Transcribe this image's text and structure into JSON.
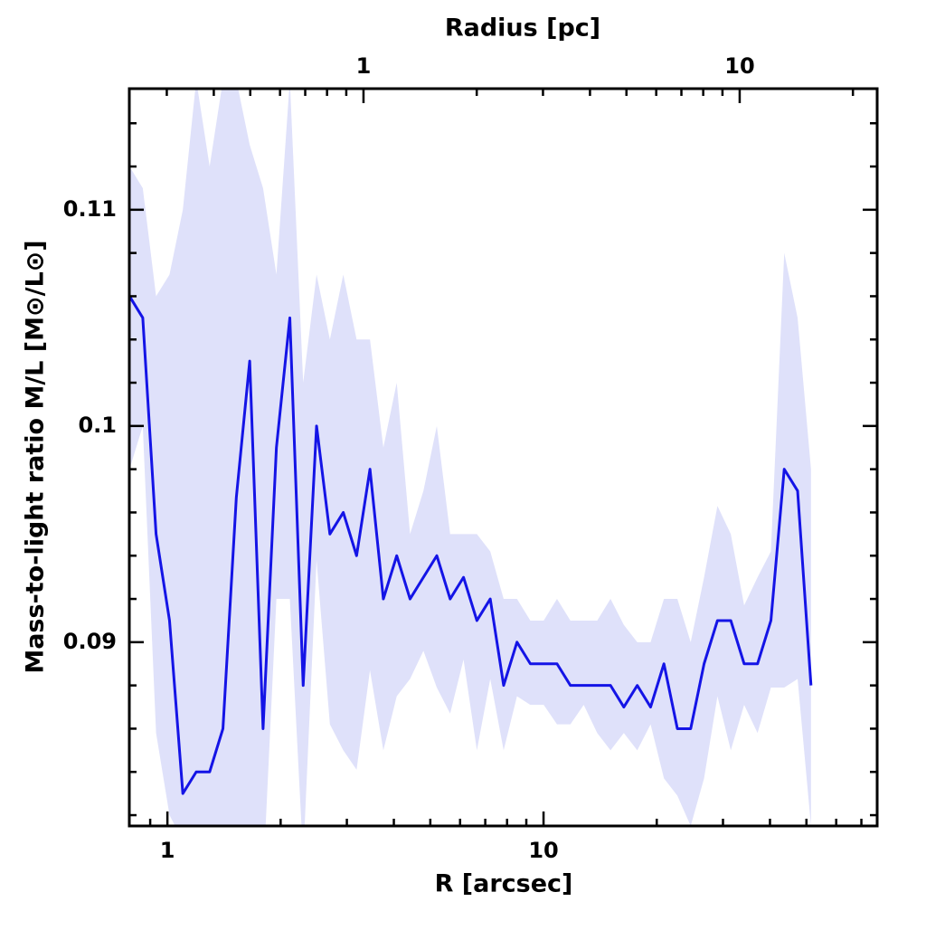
{
  "chart_data": {
    "type": "line",
    "title": "Radius [pc]",
    "xlabel": "R [arcsec]",
    "ylabel": "Mass-to-light ratio M/L [M⊙/L⊙]",
    "xscale": "log",
    "xlim": [
      0.792,
      77.1
    ],
    "xticks": [
      1,
      10
    ],
    "xminor_ticks": [
      0.9,
      2,
      3,
      4,
      5,
      6,
      7,
      8,
      9,
      20,
      30,
      40,
      50,
      60,
      70
    ],
    "x2lim": [
      0.2385,
      23.2
    ],
    "x2ticks": [
      1,
      10
    ],
    "x2minor_ticks": [
      0.3,
      0.4,
      0.5,
      0.6,
      0.7,
      0.8,
      0.9,
      2,
      3,
      4,
      5,
      6,
      7,
      8,
      9,
      20
    ],
    "ylim": [
      0.0815,
      0.1156
    ],
    "yticks": [
      0.09,
      0.1,
      0.11
    ],
    "yminor_ticks": [
      0.082,
      0.084,
      0.086,
      0.088,
      0.092,
      0.094,
      0.096,
      0.098,
      0.102,
      0.104,
      0.106,
      0.108,
      0.112,
      0.114
    ],
    "x": [
      0.793,
      0.86,
      0.933,
      1.013,
      1.099,
      1.193,
      1.295,
      1.405,
      1.525,
      1.655,
      1.796,
      1.949,
      2.116,
      2.296,
      2.492,
      2.704,
      2.935,
      3.184,
      3.456,
      3.751,
      4.071,
      4.417,
      4.794,
      5.203,
      5.646,
      6.128,
      6.65,
      7.217,
      7.833,
      8.5,
      9.225,
      10.01,
      10.86,
      11.79,
      12.79,
      13.89,
      15.07,
      16.35,
      17.75,
      19.26,
      20.9,
      22.69,
      24.62,
      26.72,
      29.0,
      31.47,
      34.15,
      37.07,
      40.23,
      43.65,
      47.37,
      51.42
    ],
    "series": [
      {
        "color": "#1414e6",
        "band_color": "#dfe1fa",
        "values": [
          0.106,
          0.105,
          0.095,
          0.091,
          0.083,
          0.084,
          0.084,
          0.086,
          0.0967,
          0.103,
          0.086,
          0.099,
          0.105,
          0.088,
          0.1,
          0.095,
          0.096,
          0.094,
          0.098,
          0.092,
          0.094,
          0.092,
          0.093,
          0.094,
          0.092,
          0.093,
          0.091,
          0.092,
          0.088,
          0.09,
          0.089,
          0.089,
          0.089,
          0.088,
          0.088,
          0.088,
          0.088,
          0.087,
          0.088,
          0.087,
          0.089,
          0.086,
          0.086,
          0.089,
          0.091,
          0.091,
          0.089,
          0.089,
          0.091,
          0.098,
          0.097,
          0.088
        ],
        "upper": [
          0.112,
          0.111,
          0.106,
          0.107,
          0.11,
          0.116,
          0.112,
          0.116,
          0.116,
          0.113,
          0.111,
          0.107,
          0.116,
          0.102,
          0.107,
          0.104,
          0.107,
          0.104,
          0.104,
          0.099,
          0.102,
          0.095,
          0.097,
          0.1,
          0.095,
          0.095,
          0.095,
          0.0942,
          0.092,
          0.092,
          0.091,
          0.091,
          0.092,
          0.091,
          0.091,
          0.091,
          0.092,
          0.0908,
          0.09,
          0.09,
          0.092,
          0.092,
          0.09,
          0.093,
          0.0963,
          0.095,
          0.0917,
          0.093,
          0.0942,
          0.108,
          0.105,
          0.098
        ],
        "lower": [
          0.098,
          0.1,
          0.0858,
          0.082,
          0.0808,
          0.078,
          0.078,
          0.078,
          0.0808,
          0.08,
          0.079,
          0.092,
          0.092,
          0.08,
          0.0938,
          0.0862,
          0.085,
          0.0841,
          0.0887,
          0.085,
          0.0875,
          0.0883,
          0.0896,
          0.0879,
          0.0867,
          0.0892,
          0.085,
          0.0883,
          0.085,
          0.0875,
          0.0871,
          0.0871,
          0.0862,
          0.0862,
          0.0871,
          0.0858,
          0.085,
          0.0858,
          0.085,
          0.0862,
          0.0837,
          0.0829,
          0.0815,
          0.0837,
          0.0875,
          0.085,
          0.0871,
          0.0858,
          0.0879,
          0.0879,
          0.0883,
          0.0815
        ]
      }
    ]
  }
}
